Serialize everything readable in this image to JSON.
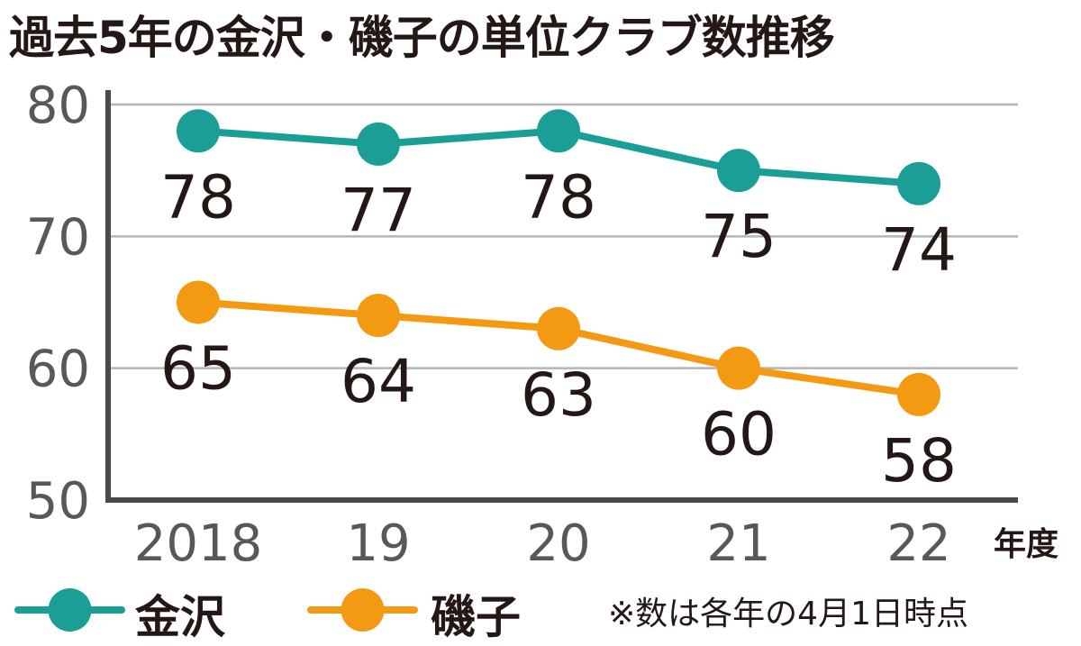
{
  "chart_data": {
    "type": "line",
    "title": "過去5年の金沢・磯子の単位クラブ数推移",
    "categories": [
      "2018",
      "19",
      "20",
      "21",
      "22"
    ],
    "xlabel": "年度",
    "ylabel": "",
    "ylim": [
      50,
      80
    ],
    "yticks": [
      "80",
      "70",
      "60",
      "50"
    ],
    "grid": true,
    "legend_placement": "bottom",
    "series": [
      {
        "name": "金沢",
        "color": "#1a9e96",
        "values": [
          78,
          77,
          78,
          75,
          74
        ]
      },
      {
        "name": "磯子",
        "color": "#f39a12",
        "values": [
          65,
          64,
          63,
          60,
          58
        ]
      }
    ],
    "note": "※数は各年の4月1日時点"
  }
}
